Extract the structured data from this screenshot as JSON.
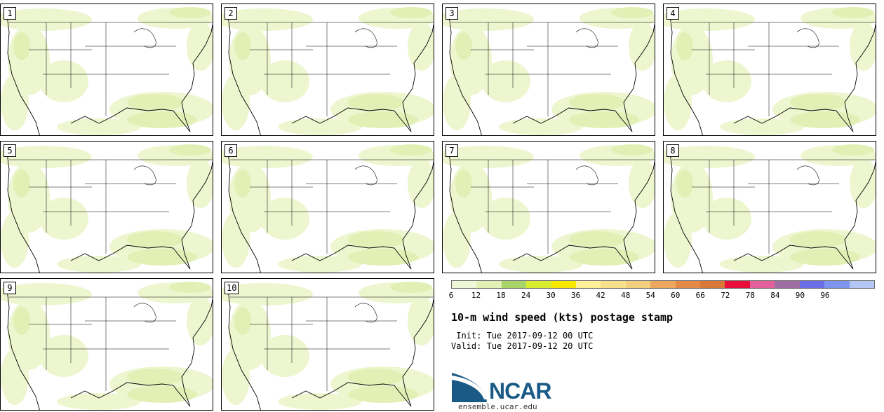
{
  "panels": [
    "1",
    "2",
    "3",
    "4",
    "5",
    "6",
    "7",
    "8",
    "9",
    "10"
  ],
  "colorbar": {
    "ticks": [
      "6",
      "12",
      "18",
      "24",
      "30",
      "36",
      "42",
      "48",
      "54",
      "60",
      "66",
      "72",
      "78",
      "84",
      "90",
      "96"
    ],
    "colors": [
      "#f0f7d8",
      "#e2f0b6",
      "#a8d468",
      "#d8ec30",
      "#f6e800",
      "#fff09a",
      "#f6e08c",
      "#f2cf7e",
      "#eba85e",
      "#e58a46",
      "#d8793a",
      "#e8103a",
      "#e4609a",
      "#9e6ea2",
      "#6a6ee6",
      "#7e94ee",
      "#b4c6f4"
    ]
  },
  "title": "10-m wind speed (kts) postage stamp",
  "init": " Init: Tue 2017-09-12 00 UTC",
  "valid": "Valid: Tue 2017-09-12 20 UTC",
  "logo": {
    "text": "NCAR",
    "url": "ensemble.ucar.edu"
  }
}
